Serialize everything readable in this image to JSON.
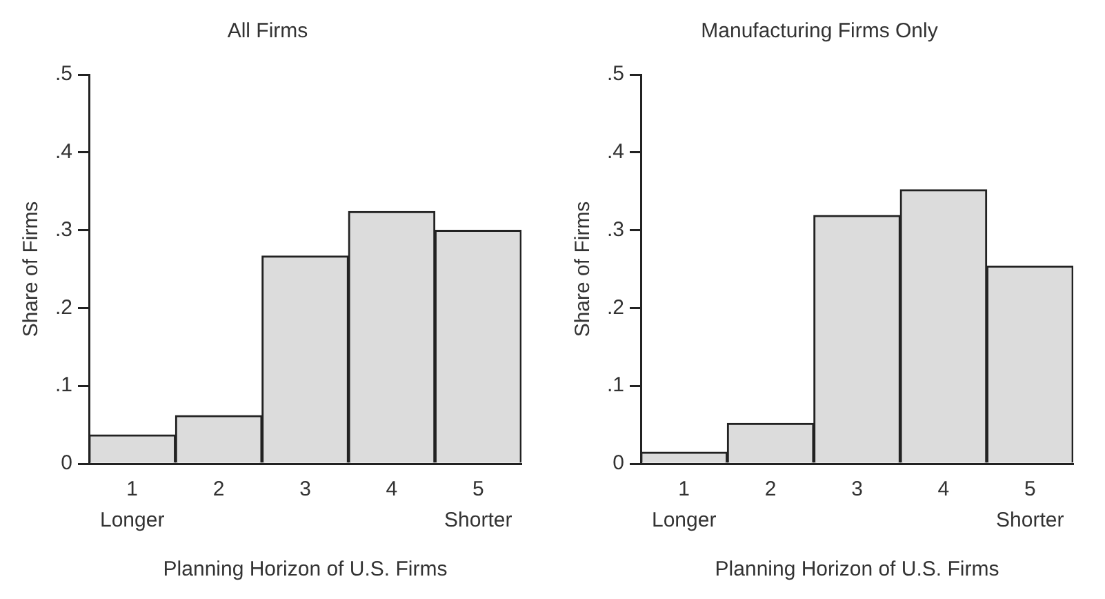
{
  "chart_data": [
    {
      "type": "bar",
      "title": "All Firms",
      "xlabel": "Planning Horizon of U.S. Firms",
      "ylabel": "Share of Firms",
      "categories": [
        "1",
        "2",
        "3",
        "4",
        "5"
      ],
      "values": [
        0.037,
        0.062,
        0.267,
        0.324,
        0.3
      ],
      "color": "#dcdcdc",
      "ylim": [
        0,
        0.5
      ],
      "yticks": [
        0,
        {
          "value": 0.1,
          "label": ".1"
        },
        {
          "value": 0.2,
          "label": ".2"
        },
        {
          "value": 0.3,
          "label": ".3"
        },
        {
          "value": 0.4,
          "label": ".4"
        },
        {
          "value": 0.5,
          "label": ".5"
        }
      ],
      "grid": false,
      "annotations": [
        "Longer",
        "Shorter"
      ]
    },
    {
      "type": "bar",
      "title": "Manufacturing Firms Only",
      "xlabel": "Planning Horizon of U.S. Firms",
      "ylabel": "Share of Firms",
      "categories": [
        "1",
        "2",
        "3",
        "4",
        "5"
      ],
      "values": [
        0.015,
        0.052,
        0.319,
        0.352,
        0.254
      ],
      "color": "#dcdcdc",
      "ylim": [
        0,
        0.5
      ],
      "yticks": [
        0,
        {
          "value": 0.1,
          "label": ".1"
        },
        {
          "value": 0.2,
          "label": ".2"
        },
        {
          "value": 0.3,
          "label": ".3"
        },
        {
          "value": 0.4,
          "label": ".4"
        },
        {
          "value": 0.5,
          "label": ".5"
        }
      ],
      "grid": false,
      "annotations": [
        "Longer",
        "Shorter"
      ]
    }
  ]
}
